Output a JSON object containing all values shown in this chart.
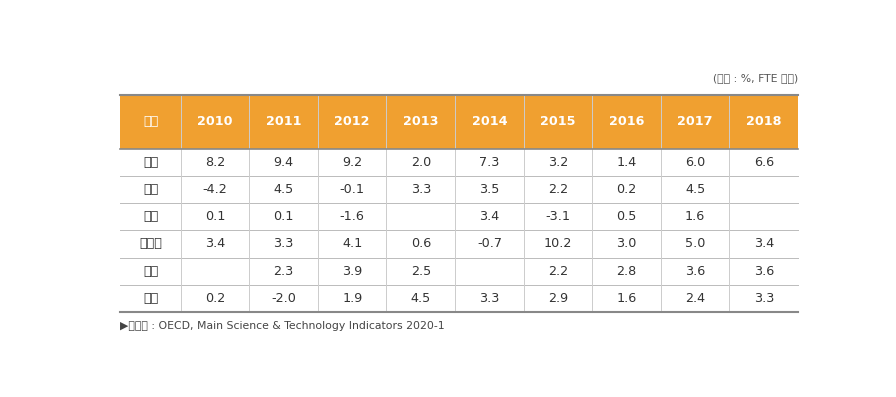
{
  "header_bg": "#F0A030",
  "header_text_color": "#FFFFFF",
  "cell_text_color": "#333333",
  "header_row": [
    "구분",
    "2010",
    "2011",
    "2012",
    "2013",
    "2014",
    "2015",
    "2016",
    "2017",
    "2018"
  ],
  "rows": [
    [
      "한국",
      "8.2",
      "9.4",
      "9.2",
      "2.0",
      "7.3",
      "3.2",
      "1.4",
      "6.0",
      "6.6"
    ],
    [
      "미국",
      "-4.2",
      "4.5",
      "-0.1",
      "3.3",
      "3.5",
      "2.2",
      "0.2",
      "4.5",
      ""
    ],
    [
      "일본",
      "0.1",
      "0.1",
      "-1.6",
      "",
      "3.4",
      "-3.1",
      "0.5",
      "1.6",
      ""
    ],
    [
      "프랑스",
      "3.4",
      "3.3",
      "4.1",
      "0.6",
      "-0.7",
      "10.2",
      "3.0",
      "5.0",
      "3.4"
    ],
    [
      "영국",
      "",
      "2.3",
      "3.9",
      "2.5",
      "",
      "2.2",
      "2.8",
      "3.6",
      "3.6"
    ],
    [
      "중국",
      "0.2",
      "-2.0",
      "1.9",
      "4.5",
      "3.3",
      "2.9",
      "1.6",
      "2.4",
      "3.3"
    ]
  ],
  "footnote": "▶자료원 : OECD, Main Science & Technology Indicators 2020-1",
  "unit_label": "(단위 : %, FTE 기준)",
  "top_border_color": "#888888",
  "header_bottom_color": "#888888",
  "row_divider_color": "#BBBBBB",
  "bottom_border_color": "#888888",
  "col_divider_color": "#CCCCCC"
}
